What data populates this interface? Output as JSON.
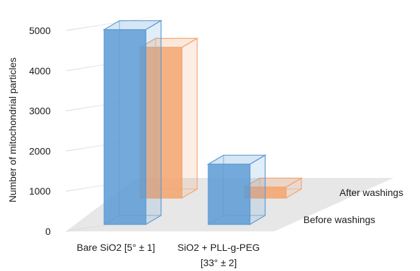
{
  "chart_data": {
    "type": "bar",
    "subtype": "3d-column",
    "title": "",
    "xlabel": "",
    "ylabel": "Number of mitochondrial particles",
    "ylim": [
      0,
      5000
    ],
    "yticks": [
      0,
      1000,
      2000,
      3000,
      4000,
      5000
    ],
    "grid": true,
    "categories": [
      {
        "line1": "Bare SiO2 [5° ± 1]",
        "line2": ""
      },
      {
        "line1": "SiO2 + PLL-g-PEG",
        "line2": "[33° ± 2]"
      }
    ],
    "series": [
      {
        "name": "Before washings",
        "color": "#5b9bd5",
        "values": [
          4850,
          1500
        ]
      },
      {
        "name": "After washings",
        "color": "#f4a36d",
        "values": [
          3750,
          270
        ]
      }
    ]
  }
}
